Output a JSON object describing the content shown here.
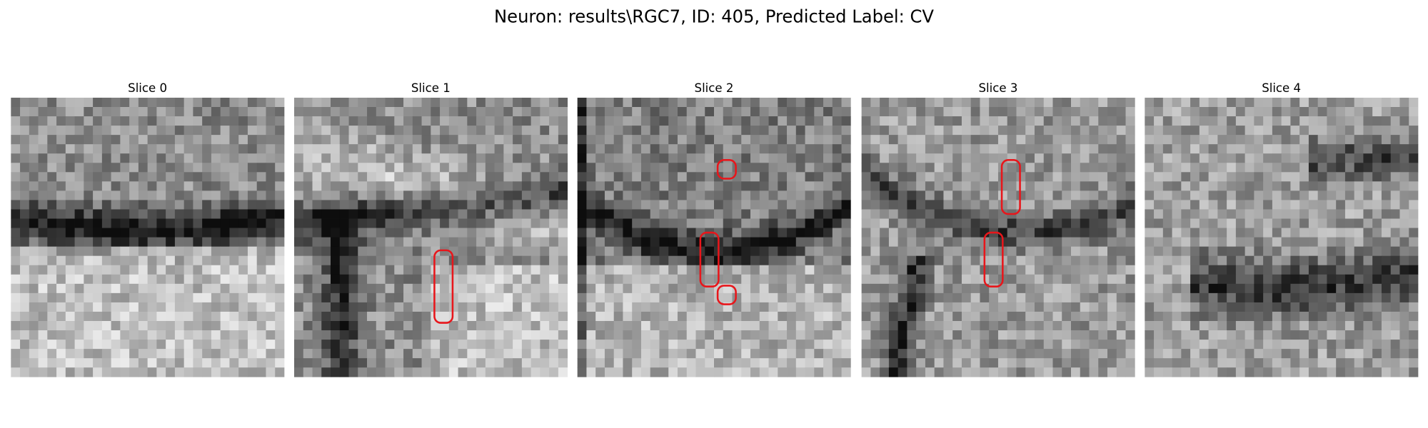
{
  "title": "Neuron: results\\RGC7, ID: 405, Predicted Label: CV",
  "panels": [
    {
      "title": "Slice 0"
    },
    {
      "title": "Slice 1"
    },
    {
      "title": "Slice 2"
    },
    {
      "title": "Slice 3"
    },
    {
      "title": "Slice 4"
    }
  ]
}
